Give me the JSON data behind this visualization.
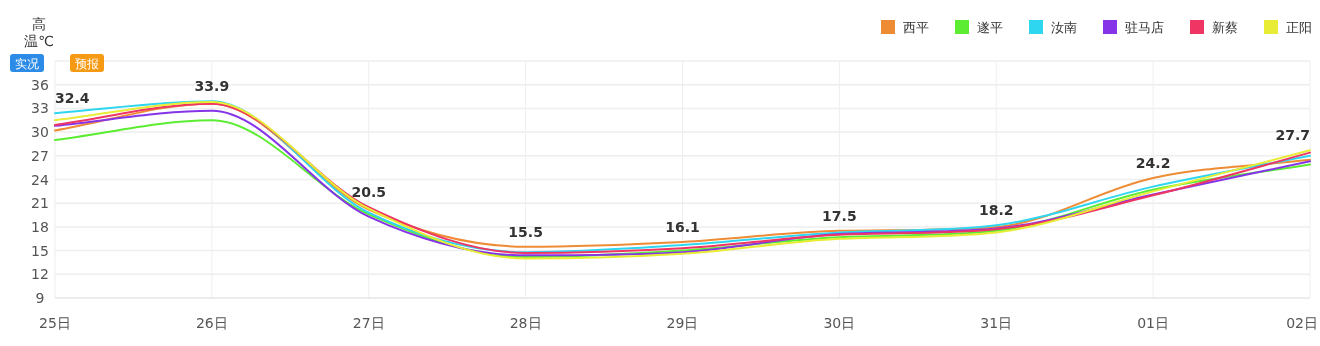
{
  "chart_data": {
    "type": "line",
    "ylabel": "高温℃",
    "categories": [
      "25日",
      "26日",
      "27日",
      "28日",
      "29日",
      "30日",
      "31日",
      "01日",
      "02日"
    ],
    "series": [
      {
        "name": "西平",
        "color": "#ee8c35",
        "values": [
          30.2,
          33.6,
          20.2,
          15.5,
          16.1,
          17.5,
          18.0,
          24.2,
          26.5
        ]
      },
      {
        "name": "遂平",
        "color": "#5ced33",
        "values": [
          29.0,
          31.5,
          19.6,
          14.2,
          15.0,
          16.7,
          17.5,
          22.7,
          25.9
        ]
      },
      {
        "name": "汝南",
        "color": "#2fd6ef",
        "values": [
          32.4,
          33.9,
          19.8,
          14.8,
          15.7,
          17.3,
          18.2,
          23.1,
          27.0
        ]
      },
      {
        "name": "驻马店",
        "color": "#8634e8",
        "values": [
          30.8,
          32.7,
          19.3,
          14.4,
          14.8,
          17.1,
          17.8,
          22.1,
          26.3
        ]
      },
      {
        "name": "新蔡",
        "color": "#ef3564",
        "values": [
          30.9,
          33.6,
          20.5,
          14.7,
          15.3,
          17.0,
          17.7,
          22.0,
          27.4
        ]
      },
      {
        "name": "正阳",
        "color": "#e8ec35",
        "values": [
          31.5,
          33.8,
          20.3,
          14.0,
          14.6,
          16.5,
          17.3,
          22.5,
          27.7
        ]
      }
    ],
    "ylim": [
      9,
      39
    ],
    "yticks": [
      9,
      12,
      15,
      18,
      21,
      24,
      27,
      30,
      33,
      36,
      {
        "value": 39,
        "label": null
      }
    ],
    "grid": true,
    "legend": "top right",
    "marker": "none",
    "line_style": "solid",
    "annotations": [
      {
        "text": "32.4",
        "x": "25日",
        "y": 32.4
      },
      {
        "text": "33.9",
        "x": "26日",
        "y": 33.9
      },
      {
        "text": "20.5",
        "x": "27日",
        "y": 20.5
      },
      {
        "text": "15.5",
        "x": "28日",
        "y": 15.5
      },
      {
        "text": "16.1",
        "x": "29日",
        "y": 16.1
      },
      {
        "text": "17.5",
        "x": "30日",
        "y": 17.5
      },
      {
        "text": "18.2",
        "x": "31日",
        "y": 18.2
      },
      {
        "text": "24.2",
        "x": "01日",
        "y": 24.2
      },
      {
        "text": "27.7",
        "x": "02日",
        "y": 27.7
      },
      "实况",
      "预报"
    ]
  }
}
